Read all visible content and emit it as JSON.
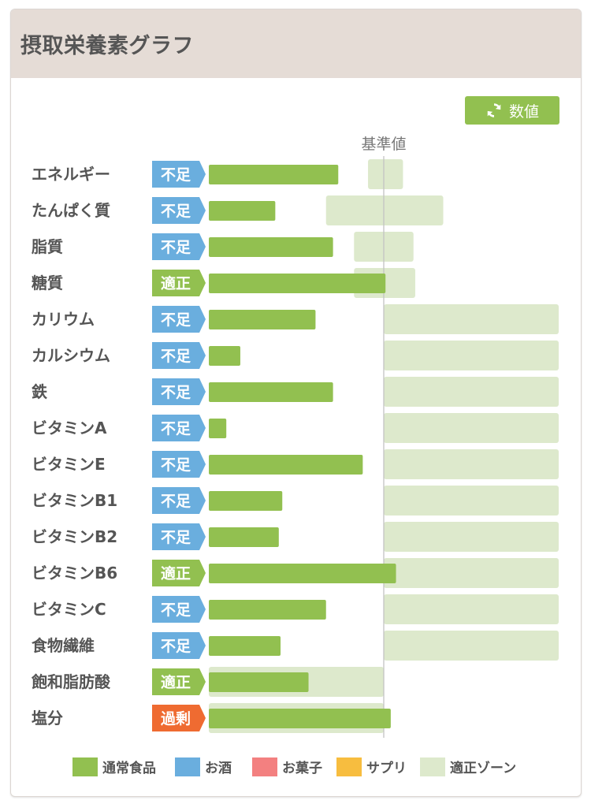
{
  "header": {
    "title": "摂取栄養素グラフ"
  },
  "toolbar": {
    "toggle_label": "数値",
    "toggle_icon": "refresh-icon"
  },
  "colors": {
    "food": "#92c050",
    "alcohol": "#6aaede",
    "sweets": "#f38080",
    "supplement": "#f7bd3f",
    "zone": "#dde9cc",
    "status_low": "#6aaede",
    "status_ok": "#92c050",
    "status_high": "#ef6b31"
  },
  "chart_data": {
    "type": "bar",
    "title": "摂取栄養素グラフ",
    "reference_label": "基準値",
    "unit": "% of 基準値",
    "categories": [
      "エネルギー",
      "たんぱく質",
      "脂質",
      "糖質",
      "カリウム",
      "カルシウム",
      "鉄",
      "ビタミンA",
      "ビタミンE",
      "ビタミンB1",
      "ビタミンB2",
      "ビタミンB6",
      "ビタミンC",
      "食物繊維",
      "飽和脂肪酸",
      "塩分"
    ],
    "status": [
      "不足",
      "不足",
      "不足",
      "適正",
      "不足",
      "不足",
      "不足",
      "不足",
      "不足",
      "不足",
      "不足",
      "適正",
      "不足",
      "不足",
      "適正",
      "過剰"
    ],
    "series": [
      {
        "name": "通常食品",
        "values": [
          74,
          38,
          71,
          101,
          61,
          18,
          71,
          10,
          88,
          42,
          40,
          107,
          67,
          41,
          57,
          104
        ]
      }
    ],
    "zone_min": [
      91,
      67,
      83,
      83,
      100,
      100,
      100,
      100,
      100,
      100,
      100,
      100,
      100,
      100,
      0,
      0
    ],
    "zone_max": [
      111,
      134,
      117,
      118,
      200,
      200,
      200,
      200,
      200,
      200,
      200,
      200,
      200,
      200,
      100,
      100
    ],
    "legend": [
      "通常食品",
      "お酒",
      "お菓子",
      "サプリ",
      "適正ゾーン"
    ]
  }
}
